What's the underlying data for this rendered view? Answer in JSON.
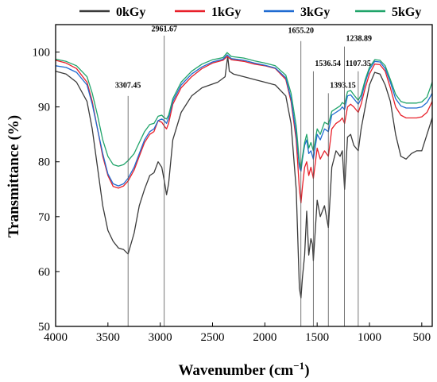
{
  "chart_data": {
    "type": "line",
    "xlabel": "Wavenumber (cm",
    "xlabel_sup": "−1",
    "xlabel_end": ")",
    "ylabel": "Transmittance (%)",
    "xlim": [
      4000,
      400
    ],
    "ylim": [
      50,
      105
    ],
    "x_ticks": [
      4000,
      3500,
      3000,
      2500,
      2000,
      1500,
      1000,
      500
    ],
    "y_ticks": [
      50,
      60,
      70,
      80,
      90,
      100
    ],
    "legend_position": "top",
    "series": [
      {
        "name": "0kGy",
        "color": "#3a3a3a",
        "points": [
          [
            4000,
            96.5
          ],
          [
            3900,
            96
          ],
          [
            3800,
            94.5
          ],
          [
            3700,
            91
          ],
          [
            3650,
            86
          ],
          [
            3600,
            79
          ],
          [
            3550,
            72
          ],
          [
            3500,
            67.5
          ],
          [
            3450,
            65.5
          ],
          [
            3400,
            64.3
          ],
          [
            3350,
            64
          ],
          [
            3307,
            63.2
          ],
          [
            3250,
            67
          ],
          [
            3200,
            72
          ],
          [
            3150,
            75
          ],
          [
            3100,
            77.5
          ],
          [
            3060,
            78
          ],
          [
            3020,
            80
          ],
          [
            2985,
            79
          ],
          [
            2961,
            76.5
          ],
          [
            2940,
            74
          ],
          [
            2920,
            76
          ],
          [
            2880,
            84
          ],
          [
            2800,
            89
          ],
          [
            2700,
            92
          ],
          [
            2600,
            93.5
          ],
          [
            2450,
            94.5
          ],
          [
            2380,
            95.5
          ],
          [
            2355,
            99.2
          ],
          [
            2340,
            96.5
          ],
          [
            2300,
            96
          ],
          [
            2200,
            95.5
          ],
          [
            2100,
            95
          ],
          [
            2000,
            94.5
          ],
          [
            1900,
            94
          ],
          [
            1800,
            92
          ],
          [
            1750,
            87
          ],
          [
            1700,
            75
          ],
          [
            1670,
            57
          ],
          [
            1655,
            55.2
          ],
          [
            1640,
            59
          ],
          [
            1620,
            63
          ],
          [
            1600,
            71
          ],
          [
            1580,
            63
          ],
          [
            1560,
            66
          ],
          [
            1545,
            65
          ],
          [
            1536,
            62
          ],
          [
            1500,
            73
          ],
          [
            1470,
            70
          ],
          [
            1430,
            72
          ],
          [
            1393,
            68
          ],
          [
            1360,
            79
          ],
          [
            1320,
            82
          ],
          [
            1280,
            81
          ],
          [
            1260,
            82
          ],
          [
            1238,
            75
          ],
          [
            1210,
            84.5
          ],
          [
            1180,
            85
          ],
          [
            1150,
            83
          ],
          [
            1107,
            82
          ],
          [
            1080,
            86
          ],
          [
            1040,
            90
          ],
          [
            1000,
            94
          ],
          [
            950,
            96.3
          ],
          [
            900,
            96
          ],
          [
            850,
            94
          ],
          [
            800,
            91
          ],
          [
            750,
            85
          ],
          [
            700,
            81
          ],
          [
            650,
            80.5
          ],
          [
            600,
            81.5
          ],
          [
            550,
            82
          ],
          [
            500,
            82
          ],
          [
            450,
            85
          ],
          [
            400,
            88
          ]
        ]
      },
      {
        "name": "1kGy",
        "color": "#e8202a",
        "points": [
          [
            4000,
            98.5
          ],
          [
            3900,
            98
          ],
          [
            3800,
            97
          ],
          [
            3700,
            94.5
          ],
          [
            3650,
            91
          ],
          [
            3600,
            86
          ],
          [
            3550,
            81
          ],
          [
            3500,
            77.5
          ],
          [
            3450,
            75.5
          ],
          [
            3400,
            75.2
          ],
          [
            3350,
            75.6
          ],
          [
            3307,
            76.5
          ],
          [
            3250,
            78.5
          ],
          [
            3200,
            81
          ],
          [
            3150,
            83.5
          ],
          [
            3100,
            85
          ],
          [
            3060,
            85.5
          ],
          [
            3020,
            87.5
          ],
          [
            2985,
            87.2
          ],
          [
            2961,
            86.5
          ],
          [
            2940,
            86
          ],
          [
            2920,
            87
          ],
          [
            2880,
            90.5
          ],
          [
            2800,
            93.5
          ],
          [
            2700,
            95.5
          ],
          [
            2600,
            97
          ],
          [
            2500,
            98
          ],
          [
            2400,
            98.5
          ],
          [
            2360,
            99.2
          ],
          [
            2320,
            98.6
          ],
          [
            2200,
            98.3
          ],
          [
            2100,
            97.8
          ],
          [
            2000,
            97.5
          ],
          [
            1900,
            97
          ],
          [
            1800,
            95
          ],
          [
            1750,
            91
          ],
          [
            1700,
            84
          ],
          [
            1670,
            75
          ],
          [
            1655,
            72.5
          ],
          [
            1640,
            75.5
          ],
          [
            1620,
            79
          ],
          [
            1600,
            80
          ],
          [
            1580,
            77.5
          ],
          [
            1560,
            79
          ],
          [
            1536,
            77
          ],
          [
            1500,
            82.5
          ],
          [
            1470,
            80.5
          ],
          [
            1430,
            82
          ],
          [
            1393,
            81
          ],
          [
            1360,
            86
          ],
          [
            1320,
            87
          ],
          [
            1280,
            87.5
          ],
          [
            1260,
            88
          ],
          [
            1238,
            87
          ],
          [
            1210,
            90
          ],
          [
            1180,
            90.5
          ],
          [
            1150,
            90
          ],
          [
            1107,
            89
          ],
          [
            1080,
            90.5
          ],
          [
            1040,
            93.5
          ],
          [
            1000,
            96
          ],
          [
            950,
            97.8
          ],
          [
            900,
            97.7
          ],
          [
            850,
            96.5
          ],
          [
            800,
            93.5
          ],
          [
            750,
            90
          ],
          [
            700,
            88.5
          ],
          [
            650,
            88
          ],
          [
            600,
            88
          ],
          [
            550,
            88
          ],
          [
            500,
            88.2
          ],
          [
            450,
            89
          ],
          [
            400,
            91
          ]
        ]
      },
      {
        "name": "3kGy",
        "color": "#1f6bd1",
        "points": [
          [
            4000,
            97.5
          ],
          [
            3900,
            97.2
          ],
          [
            3800,
            96.3
          ],
          [
            3700,
            94
          ],
          [
            3650,
            90.5
          ],
          [
            3600,
            86
          ],
          [
            3550,
            81.5
          ],
          [
            3500,
            77.8
          ],
          [
            3450,
            76
          ],
          [
            3400,
            75.6
          ],
          [
            3350,
            76
          ],
          [
            3307,
            77
          ],
          [
            3250,
            79
          ],
          [
            3200,
            81.5
          ],
          [
            3150,
            84
          ],
          [
            3100,
            85.5
          ],
          [
            3060,
            86
          ],
          [
            3020,
            87.5
          ],
          [
            2985,
            87.8
          ],
          [
            2961,
            87.5
          ],
          [
            2940,
            87
          ],
          [
            2920,
            88
          ],
          [
            2880,
            91
          ],
          [
            2800,
            94
          ],
          [
            2700,
            96
          ],
          [
            2600,
            97.3
          ],
          [
            2500,
            98.2
          ],
          [
            2400,
            98.7
          ],
          [
            2360,
            99.5
          ],
          [
            2320,
            98.8
          ],
          [
            2200,
            98.5
          ],
          [
            2100,
            98
          ],
          [
            2000,
            97.6
          ],
          [
            1900,
            97.1
          ],
          [
            1800,
            95.3
          ],
          [
            1750,
            91.5
          ],
          [
            1700,
            85
          ],
          [
            1670,
            79
          ],
          [
            1655,
            78.3
          ],
          [
            1640,
            80.5
          ],
          [
            1620,
            83
          ],
          [
            1600,
            84
          ],
          [
            1580,
            81.5
          ],
          [
            1560,
            82
          ],
          [
            1536,
            80.5
          ],
          [
            1500,
            85
          ],
          [
            1470,
            84
          ],
          [
            1430,
            86
          ],
          [
            1393,
            85.5
          ],
          [
            1360,
            88.5
          ],
          [
            1320,
            89
          ],
          [
            1280,
            89.5
          ],
          [
            1260,
            90
          ],
          [
            1238,
            89.5
          ],
          [
            1210,
            92
          ],
          [
            1180,
            92.2
          ],
          [
            1150,
            91.5
          ],
          [
            1107,
            90.5
          ],
          [
            1080,
            91.5
          ],
          [
            1040,
            94.5
          ],
          [
            1000,
            96.8
          ],
          [
            950,
            98.3
          ],
          [
            900,
            98.2
          ],
          [
            850,
            97
          ],
          [
            800,
            94.5
          ],
          [
            750,
            91.5
          ],
          [
            700,
            90.2
          ],
          [
            650,
            89.8
          ],
          [
            600,
            89.8
          ],
          [
            550,
            89.8
          ],
          [
            500,
            90
          ],
          [
            450,
            90.8
          ],
          [
            400,
            92.5
          ]
        ]
      },
      {
        "name": "5kGy",
        "color": "#20a46a",
        "points": [
          [
            4000,
            98.7
          ],
          [
            3900,
            98.3
          ],
          [
            3800,
            97.5
          ],
          [
            3700,
            95.5
          ],
          [
            3650,
            92.5
          ],
          [
            3600,
            88.5
          ],
          [
            3550,
            84
          ],
          [
            3500,
            81
          ],
          [
            3450,
            79.5
          ],
          [
            3400,
            79.2
          ],
          [
            3350,
            79.5
          ],
          [
            3307,
            80.2
          ],
          [
            3250,
            81.5
          ],
          [
            3200,
            83.5
          ],
          [
            3150,
            85.5
          ],
          [
            3100,
            86.8
          ],
          [
            3060,
            87
          ],
          [
            3020,
            88.3
          ],
          [
            2985,
            88.5
          ],
          [
            2961,
            88
          ],
          [
            2940,
            87.8
          ],
          [
            2920,
            88.5
          ],
          [
            2880,
            91.5
          ],
          [
            2800,
            94.5
          ],
          [
            2700,
            96.5
          ],
          [
            2600,
            97.8
          ],
          [
            2500,
            98.6
          ],
          [
            2400,
            99
          ],
          [
            2360,
            99.9
          ],
          [
            2320,
            99.2
          ],
          [
            2200,
            98.9
          ],
          [
            2100,
            98.4
          ],
          [
            2000,
            98
          ],
          [
            1900,
            97.5
          ],
          [
            1800,
            95.8
          ],
          [
            1750,
            92.5
          ],
          [
            1700,
            86.5
          ],
          [
            1670,
            80
          ],
          [
            1655,
            78.8
          ],
          [
            1640,
            81
          ],
          [
            1620,
            83.5
          ],
          [
            1600,
            85
          ],
          [
            1580,
            82.5
          ],
          [
            1560,
            83.5
          ],
          [
            1536,
            82
          ],
          [
            1500,
            86
          ],
          [
            1470,
            85
          ],
          [
            1430,
            87.2
          ],
          [
            1393,
            86.8
          ],
          [
            1360,
            89.2
          ],
          [
            1320,
            89.7
          ],
          [
            1280,
            90.2
          ],
          [
            1260,
            90.8
          ],
          [
            1238,
            90.5
          ],
          [
            1210,
            92.8
          ],
          [
            1180,
            93
          ],
          [
            1150,
            92.2
          ],
          [
            1107,
            91.2
          ],
          [
            1080,
            92.2
          ],
          [
            1040,
            95
          ],
          [
            1000,
            97.2
          ],
          [
            950,
            98.6
          ],
          [
            900,
            98.5
          ],
          [
            850,
            97.5
          ],
          [
            800,
            95
          ],
          [
            750,
            92.3
          ],
          [
            700,
            91
          ],
          [
            650,
            90.7
          ],
          [
            600,
            90.7
          ],
          [
            550,
            90.7
          ],
          [
            500,
            90.9
          ],
          [
            450,
            91.8
          ],
          [
            400,
            94.5
          ]
        ]
      }
    ],
    "peak_labels": [
      {
        "label": "3307.45",
        "x": 3307.45,
        "line_top": 92,
        "text_y": 93.5,
        "anchor": "middle"
      },
      {
        "label": "2961.67",
        "x": 2961.67,
        "line_top": 103,
        "text_y": 103.8,
        "anchor": "middle"
      },
      {
        "label": "1655.20",
        "x": 1655.2,
        "line_top": 102,
        "text_y": 103.5,
        "anchor": "middle"
      },
      {
        "label": "1536.54",
        "x": 1536.54,
        "line_top": 96.5,
        "text_y": 97.5,
        "anchor": "start"
      },
      {
        "label": "1393.15",
        "x": 1393.15,
        "line_top": 92.5,
        "text_y": 93.5,
        "anchor": "start"
      },
      {
        "label": "1238.89",
        "x": 1238.89,
        "line_top": 101,
        "text_y": 102,
        "anchor": "start"
      },
      {
        "label": "1107.35",
        "x": 1107.35,
        "line_top": 96.5,
        "text_y": 97.5,
        "anchor": "middle"
      }
    ]
  }
}
